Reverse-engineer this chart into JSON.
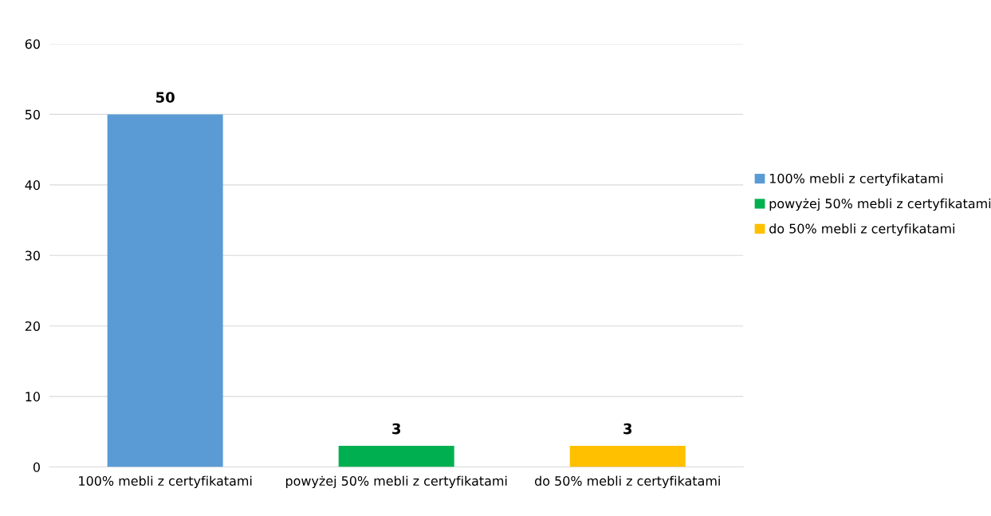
{
  "chart_data": {
    "type": "bar",
    "categories": [
      "100% mebli z certyfikatami",
      "powyżej 50% mebli z certyfikatami",
      "do 50% mebli z certyfikatami"
    ],
    "series": [
      {
        "name": "100% mebli z certyfikatami",
        "color": "#5b9bd5",
        "values": [
          50,
          null,
          null
        ]
      },
      {
        "name": "powyżej 50% mebli z certyfikatami",
        "color": "#00b050",
        "values": [
          null,
          3,
          null
        ]
      },
      {
        "name": "do 50% mebli z certyfikatami",
        "color": "#ffc000",
        "values": [
          null,
          null,
          3
        ]
      }
    ],
    "ylim": [
      0,
      60
    ],
    "yticks": [
      0,
      10,
      20,
      30,
      40,
      50,
      60
    ],
    "grid": "y",
    "legend": "right",
    "data_labels": true
  }
}
